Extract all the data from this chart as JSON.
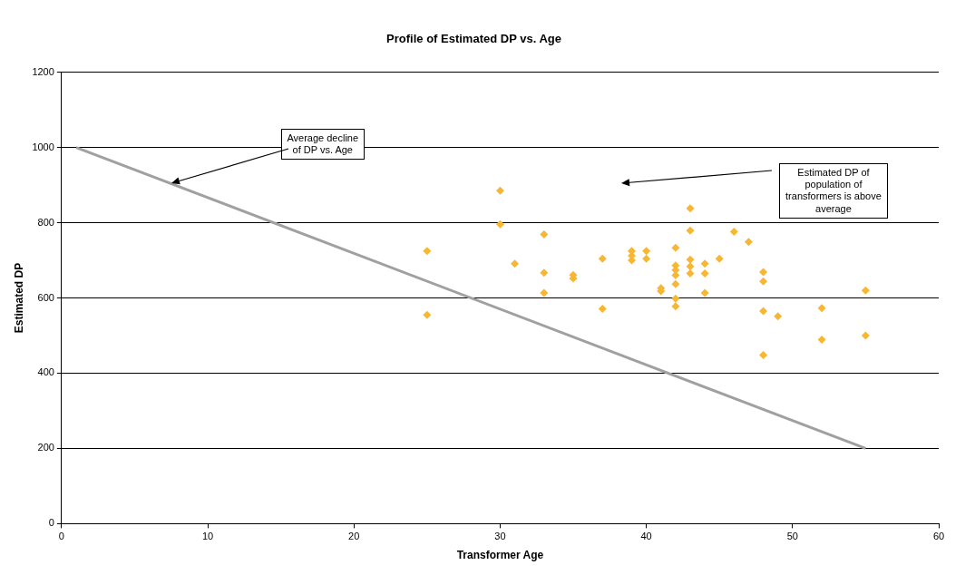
{
  "chart_data": {
    "type": "scatter",
    "title": "Profile of Estimated DP vs. Age",
    "xlabel": "Transformer Age",
    "ylabel": "Estimated DP",
    "xlim": [
      0,
      60
    ],
    "xticks": [
      0,
      10,
      20,
      30,
      40,
      50,
      60
    ],
    "ylim": [
      0,
      1200
    ],
    "yticks": [
      0,
      200,
      400,
      600,
      800,
      1000,
      1200
    ],
    "grid": "y",
    "legend": false,
    "marker": "diamond",
    "series": [
      {
        "color": "#f7b733",
        "x": [
          25,
          25,
          30,
          30,
          31,
          33,
          33,
          33,
          35,
          35,
          37,
          37,
          39,
          39,
          39,
          40,
          40,
          41,
          41,
          42,
          42,
          42,
          42,
          42,
          42,
          42,
          43,
          43,
          43,
          43,
          43,
          44,
          44,
          44,
          45,
          46,
          47,
          48,
          48,
          48,
          48,
          49,
          52,
          52,
          55,
          55
        ],
        "values": [
          725,
          555,
          885,
          796,
          691,
          769,
          667,
          613,
          661,
          652,
          704,
          571,
          725,
          712,
          700,
          725,
          704,
          626,
          618,
          733,
          686,
          674,
          660,
          637,
          598,
          578,
          838,
          779,
          702,
          684,
          665,
          691,
          665,
          613,
          704,
          776,
          749,
          669,
          644,
          565,
          448,
          551,
          573,
          489,
          620,
          500
        ]
      },
      {
        "type": "line",
        "color": "#a0a0a0",
        "marker": "none",
        "x": [
          1,
          55
        ],
        "values": [
          1000,
          200
        ]
      }
    ],
    "annotations": [
      {
        "text": "Average decline of DP vs. Age",
        "x": 7.5,
        "y": 905
      },
      "Estimated DP of population of transformers is above average"
    ]
  }
}
